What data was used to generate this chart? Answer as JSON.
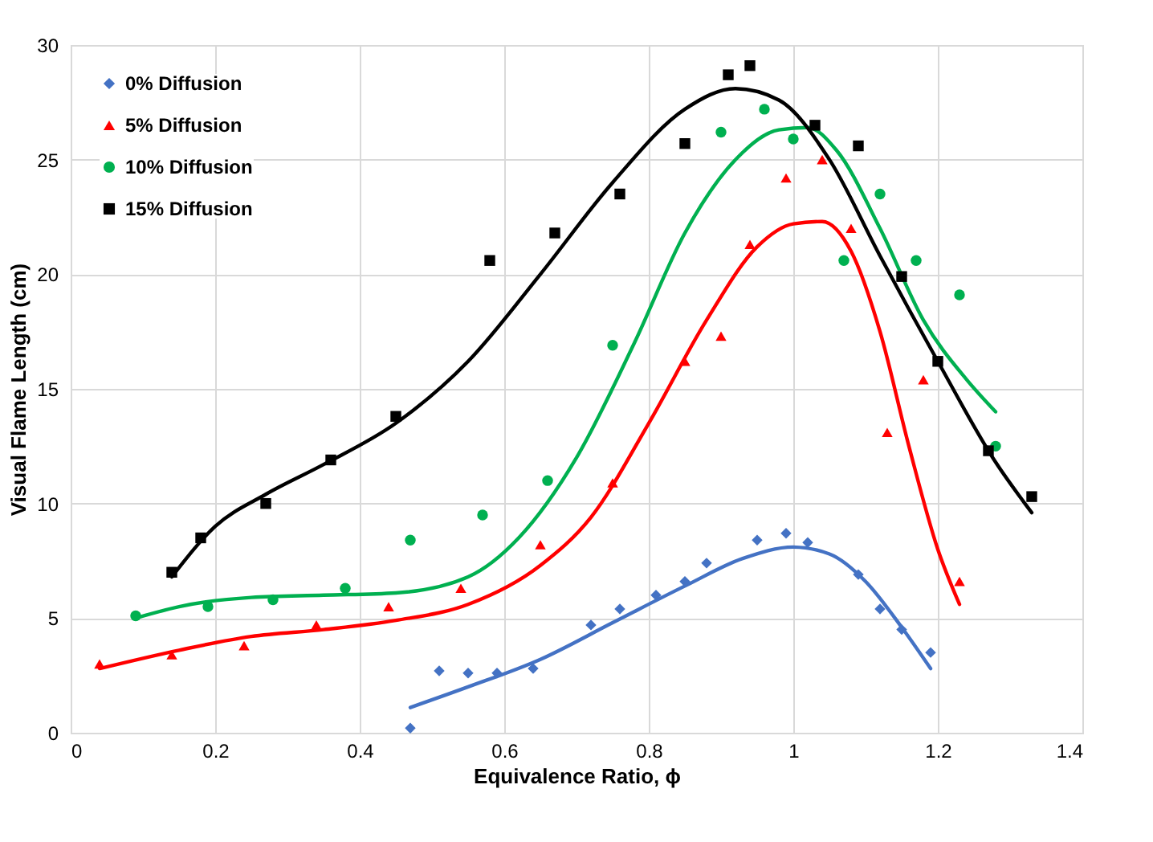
{
  "chart_data": {
    "type": "scatter",
    "xlabel": "Equivalence Ratio, ϕ",
    "ylabel": "Visual Flame Length (cm)",
    "xlim": [
      0,
      1.4
    ],
    "xticks": [
      0,
      0.2,
      0.4,
      0.6,
      0.8,
      1,
      1.2,
      1.4
    ],
    "ylim": [
      0,
      30
    ],
    "yticks": [
      0,
      5,
      10,
      15,
      20,
      25,
      30
    ],
    "grid": true,
    "legend": "top left",
    "series": [
      {
        "name": "0% Diffusion",
        "marker": "diamond",
        "color": "#4472c4",
        "x": [
          0.47,
          0.51,
          0.55,
          0.59,
          0.64,
          0.72,
          0.76,
          0.81,
          0.85,
          0.88,
          0.95,
          0.99,
          1.02,
          1.09,
          1.12,
          1.15,
          1.19
        ],
        "values": [
          0.2,
          2.7,
          2.6,
          2.6,
          2.8,
          4.7,
          5.4,
          6.0,
          6.6,
          7.4,
          8.4,
          8.7,
          8.3,
          6.9,
          5.4,
          4.5,
          3.5
        ]
      },
      {
        "name": "5% Diffusion",
        "marker": "triangle",
        "color": "#ff0000",
        "x": [
          0.04,
          0.14,
          0.24,
          0.34,
          0.44,
          0.54,
          0.65,
          0.75,
          0.85,
          0.9,
          0.94,
          0.99,
          1.04,
          1.08,
          1.13,
          1.18,
          1.23
        ],
        "values": [
          3.0,
          3.4,
          3.8,
          4.7,
          5.5,
          6.3,
          8.2,
          10.9,
          16.2,
          17.3,
          21.3,
          24.2,
          25.0,
          22.0,
          13.1,
          15.4,
          6.6
        ]
      },
      {
        "name": "10% Diffusion",
        "marker": "circle",
        "color": "#00b050",
        "x": [
          0.09,
          0.19,
          0.28,
          0.38,
          0.47,
          0.57,
          0.66,
          0.75,
          0.9,
          0.96,
          1.0,
          1.07,
          1.12,
          1.17,
          1.23,
          1.28
        ],
        "values": [
          5.1,
          5.5,
          5.8,
          6.3,
          8.4,
          9.5,
          11.0,
          16.9,
          26.2,
          27.2,
          25.9,
          20.6,
          23.5,
          20.6,
          19.1,
          12.5
        ]
      },
      {
        "name": "15% Diffusion",
        "marker": "square",
        "color": "#000000",
        "x": [
          0.14,
          0.18,
          0.27,
          0.36,
          0.45,
          0.58,
          0.67,
          0.76,
          0.85,
          0.91,
          0.94,
          1.03,
          1.09,
          1.15,
          1.2,
          1.27,
          1.33
        ],
        "values": [
          7.0,
          8.5,
          10.0,
          11.9,
          13.8,
          20.6,
          21.8,
          23.5,
          25.7,
          28.7,
          29.1,
          26.5,
          25.6,
          19.9,
          16.2,
          12.3,
          10.3
        ]
      },
      {
        "type": "line",
        "color": "#4472c4",
        "x": [
          0.47,
          0.55,
          0.65,
          0.75,
          0.85,
          0.93,
          1.0,
          1.05,
          1.1,
          1.15,
          1.19
        ],
        "values": [
          1.1,
          2.0,
          3.2,
          4.8,
          6.4,
          7.6,
          8.1,
          7.8,
          6.6,
          4.6,
          2.8
        ]
      },
      {
        "type": "line",
        "color": "#ff0000",
        "x": [
          0.04,
          0.15,
          0.25,
          0.35,
          0.45,
          0.55,
          0.65,
          0.72,
          0.8,
          0.88,
          0.95,
          1.0,
          1.04,
          1.08,
          1.12,
          1.16,
          1.2,
          1.23
        ],
        "values": [
          2.8,
          3.6,
          4.2,
          4.5,
          4.9,
          5.6,
          7.3,
          9.4,
          13.5,
          18.0,
          21.2,
          22.2,
          22.3,
          21.0,
          17.5,
          12.5,
          8.0,
          5.6
        ]
      },
      {
        "type": "line",
        "color": "#00b050",
        "x": [
          0.09,
          0.15,
          0.25,
          0.35,
          0.45,
          0.55,
          0.62,
          0.7,
          0.78,
          0.85,
          0.92,
          0.98,
          1.02,
          1.06,
          1.12,
          1.18,
          1.24,
          1.28
        ],
        "values": [
          5.0,
          5.5,
          5.9,
          6.0,
          6.1,
          6.8,
          8.5,
          12.0,
          17.0,
          21.8,
          25.0,
          26.3,
          26.4,
          25.4,
          22.0,
          18.0,
          15.4,
          14.0
        ]
      },
      {
        "type": "line",
        "color": "#000000",
        "x": [
          0.14,
          0.2,
          0.27,
          0.35,
          0.45,
          0.55,
          0.65,
          0.75,
          0.85,
          0.92,
          0.98,
          1.05,
          1.12,
          1.2,
          1.28,
          1.33
        ],
        "values": [
          6.8,
          9.0,
          10.4,
          11.7,
          13.5,
          16.2,
          20.0,
          24.0,
          27.2,
          28.1,
          27.6,
          25.0,
          20.8,
          16.2,
          11.8,
          9.6
        ]
      }
    ]
  }
}
